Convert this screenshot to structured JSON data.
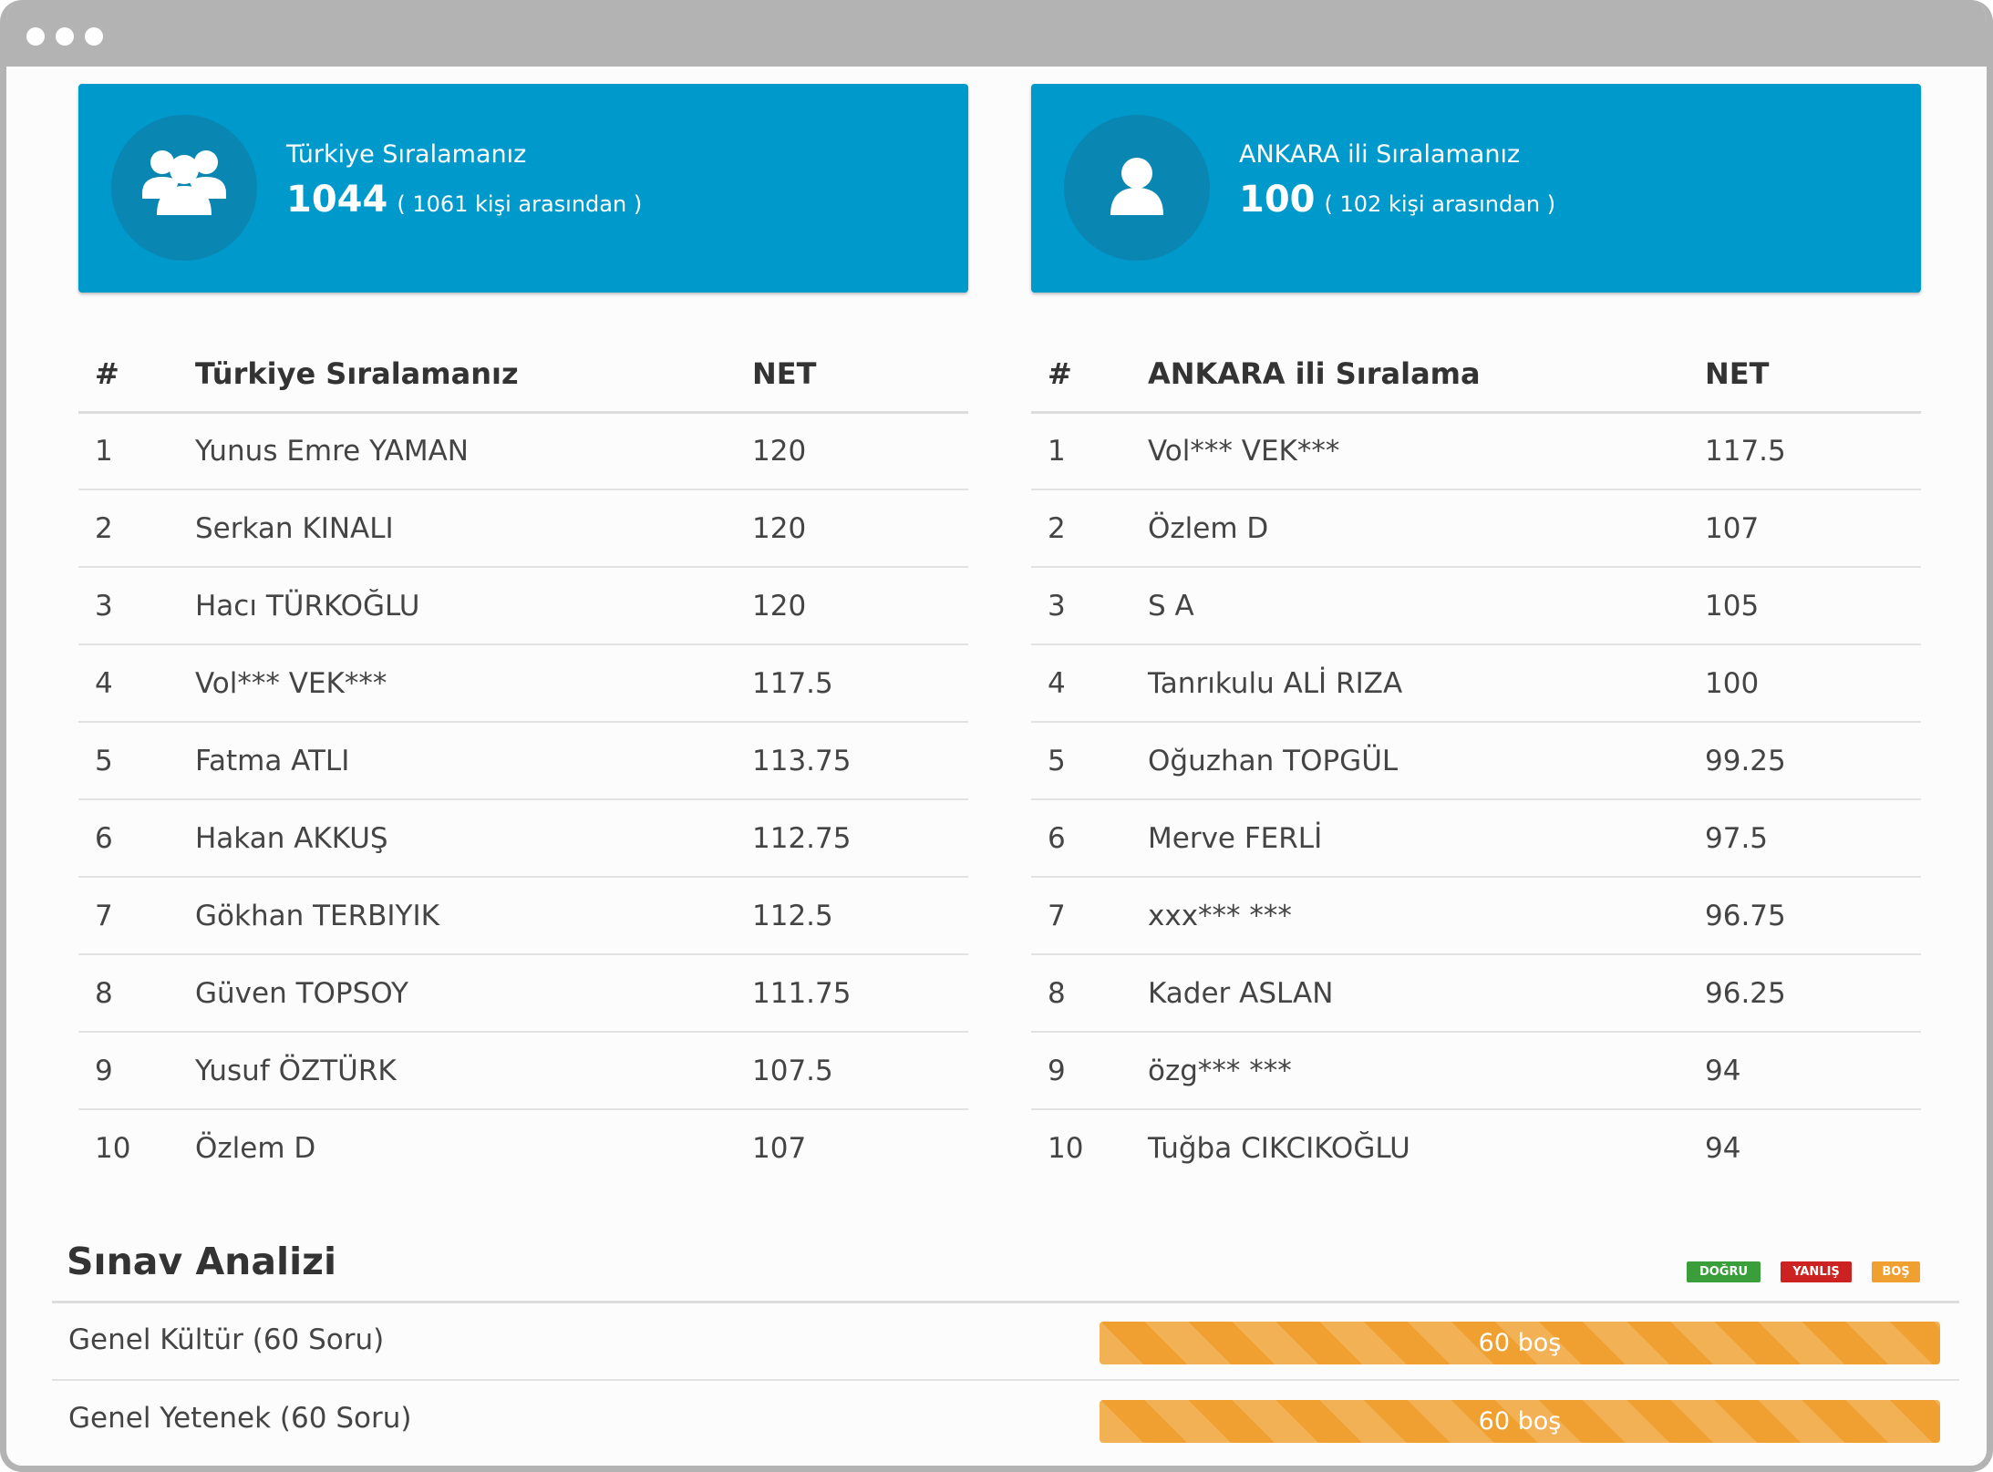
{
  "window": {
    "chrome_color": "#b3b3b3"
  },
  "cards": {
    "turkey": {
      "title": "Türkiye Sıralamanız",
      "rank": "1044",
      "context": "( 1061 kişi arasından )",
      "icon": "users-group-icon"
    },
    "city": {
      "title": "ANKARA ili Sıralamanız",
      "rank": "100",
      "context": "( 102 kişi arasından )",
      "icon": "user-icon"
    },
    "color": "#0099cc"
  },
  "turkey_table": {
    "headers": [
      "#",
      "Türkiye Sıralamanız",
      "NET"
    ],
    "rows": [
      {
        "rank": "1",
        "name": "Yunus Emre YAMAN",
        "net": "120"
      },
      {
        "rank": "2",
        "name": "Serkan KINALI",
        "net": "120"
      },
      {
        "rank": "3",
        "name": "Hacı TÜRKOĞLU",
        "net": "120"
      },
      {
        "rank": "4",
        "name": "Vol*** VEK***",
        "net": "117.5"
      },
      {
        "rank": "5",
        "name": "Fatma ATLI",
        "net": "113.75"
      },
      {
        "rank": "6",
        "name": "Hakan AKKUŞ",
        "net": "112.75"
      },
      {
        "rank": "7",
        "name": "Gökhan TERBIYIK",
        "net": "112.5"
      },
      {
        "rank": "8",
        "name": "Güven TOPSOY",
        "net": "111.75"
      },
      {
        "rank": "9",
        "name": "Yusuf ÖZTÜRK",
        "net": "107.5"
      },
      {
        "rank": "10",
        "name": "Özlem D",
        "net": "107"
      }
    ]
  },
  "city_table": {
    "headers": [
      "#",
      "ANKARA ili Sıralama",
      "NET"
    ],
    "rows": [
      {
        "rank": "1",
        "name": "Vol*** VEK***",
        "net": "117.5"
      },
      {
        "rank": "2",
        "name": "Özlem D",
        "net": "107"
      },
      {
        "rank": "3",
        "name": "S A",
        "net": "105"
      },
      {
        "rank": "4",
        "name": "Tanrıkulu ALİ RIZA",
        "net": "100"
      },
      {
        "rank": "5",
        "name": "Oğuzhan TOPGÜL",
        "net": "99.25"
      },
      {
        "rank": "6",
        "name": "Merve FERLİ",
        "net": "97.5"
      },
      {
        "rank": "7",
        "name": "xxx*** ***",
        "net": "96.75"
      },
      {
        "rank": "8",
        "name": "Kader ASLAN",
        "net": "96.25"
      },
      {
        "rank": "9",
        "name": "özg*** ***",
        "net": "94"
      },
      {
        "rank": "10",
        "name": "Tuğba CIKCIKOĞLU",
        "net": "94"
      }
    ]
  },
  "analysis": {
    "title": "Sınav Analizi",
    "legend": {
      "correct": {
        "label": "DOĞRU",
        "color": "#3a9e3a"
      },
      "wrong": {
        "label": "YANLIŞ",
        "color": "#cc2222"
      },
      "blank": {
        "label": "BOŞ",
        "color": "#f0a030"
      }
    },
    "rows": [
      {
        "label": "Genel Kültür (60 Soru)",
        "bar_text": "60 boş",
        "blank_fraction": 1.0
      },
      {
        "label": "Genel Yetenek (60 Soru)",
        "bar_text": "60 boş",
        "blank_fraction": 1.0
      }
    ]
  }
}
